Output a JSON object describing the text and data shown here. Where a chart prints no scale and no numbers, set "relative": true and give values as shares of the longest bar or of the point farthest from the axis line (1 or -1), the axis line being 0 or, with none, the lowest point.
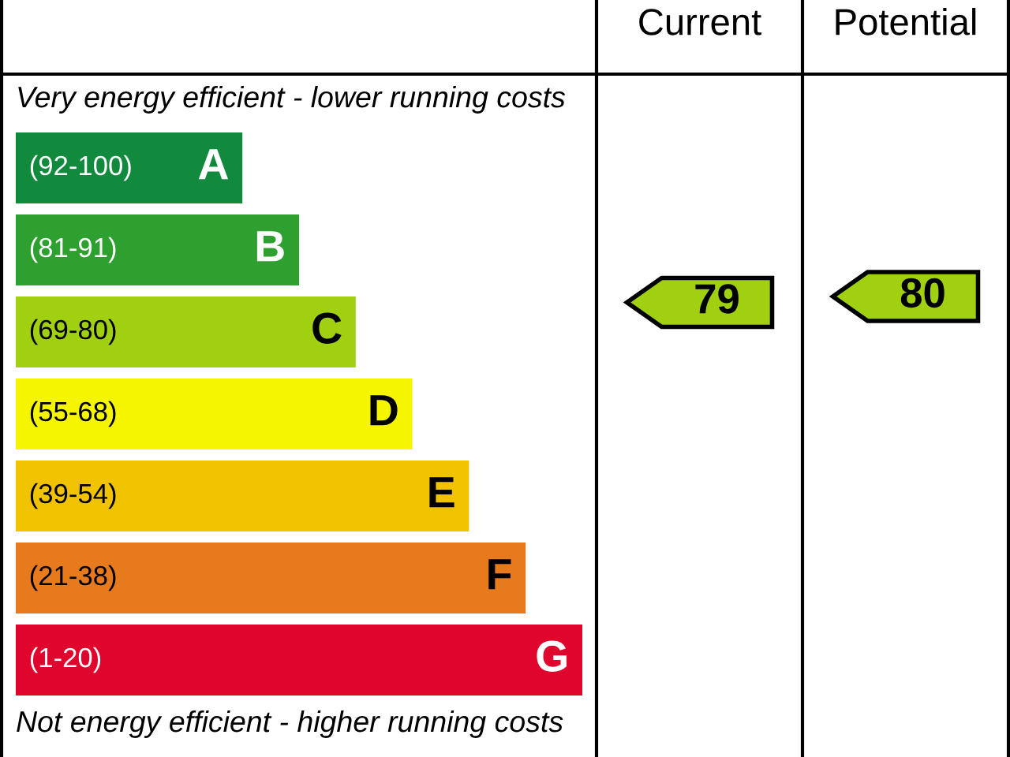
{
  "chart_data": [
    {
      "type": "bar",
      "orientation": "horizontal",
      "relative": true,
      "categories": [
        "(92-100)",
        "(81-91)",
        "(69-80)",
        "(55-68)",
        "(39-54)",
        "(21-38)",
        "(1-20)"
      ],
      "values": [
        0.4,
        0.5,
        0.6,
        0.7,
        0.8,
        0.9,
        1
      ],
      "colors": [
        "#128a3e",
        "#2da030",
        "#a0d010",
        "#f5f500",
        "#f0c200",
        "#e67a1c",
        "#e0052c"
      ],
      "annotations": [
        "Very energy efficient - lower running costs",
        "Not energy efficient - higher running costs",
        {
          "text": "A",
          "y": "(92-100)"
        },
        {
          "text": "B",
          "y": "(81-91)"
        },
        {
          "text": "C",
          "y": "(69-80)"
        },
        {
          "text": "D",
          "y": "(55-68)"
        },
        {
          "text": "E",
          "y": "(39-54)"
        },
        {
          "text": "F",
          "y": "(21-38)"
        },
        {
          "text": "G",
          "y": "(1-20)"
        }
      ]
    },
    {
      "type": "other",
      "categories": [
        "Current",
        "Potential"
      ],
      "values": [
        79,
        80
      ],
      "colors": [
        "#a0d010",
        "#a0d010"
      ],
      "data_labels": true
    }
  ]
}
